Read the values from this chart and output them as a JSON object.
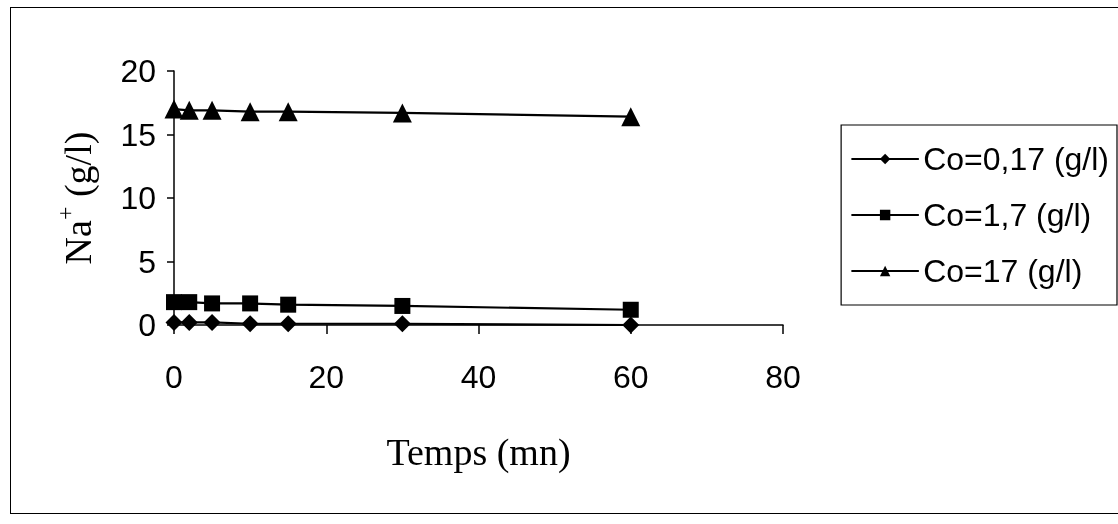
{
  "chart_data": {
    "type": "line",
    "xlabel": "Temps (mn)",
    "ylabel": "Na$^{+}$ (g/l)",
    "x": [
      0,
      2,
      5,
      10,
      15,
      30,
      60
    ],
    "xlim": [
      0,
      80
    ],
    "xticks": [
      0,
      20,
      40,
      60,
      80
    ],
    "ylim": [
      0,
      20
    ],
    "yticks": [
      0,
      5,
      10,
      15,
      20
    ],
    "grid": false,
    "legend": "right",
    "line_style": "solid",
    "series": [
      {
        "name": "Co=0,17 (g/l)",
        "color": "#000000",
        "marker": "diamond",
        "values": [
          0.2,
          0.2,
          0.2,
          0.1,
          0.1,
          0.1,
          0.0
        ]
      },
      {
        "name": "Co=1,7 (g/l)",
        "color": "#000000",
        "marker": "square",
        "values": [
          1.8,
          1.8,
          1.7,
          1.7,
          1.6,
          1.5,
          1.2
        ]
      },
      {
        "name": "Co=17 (g/l)",
        "color": "#000000",
        "marker": "triangle",
        "values": [
          17,
          16.9,
          16.9,
          16.8,
          16.8,
          16.7,
          16.4
        ]
      }
    ]
  }
}
